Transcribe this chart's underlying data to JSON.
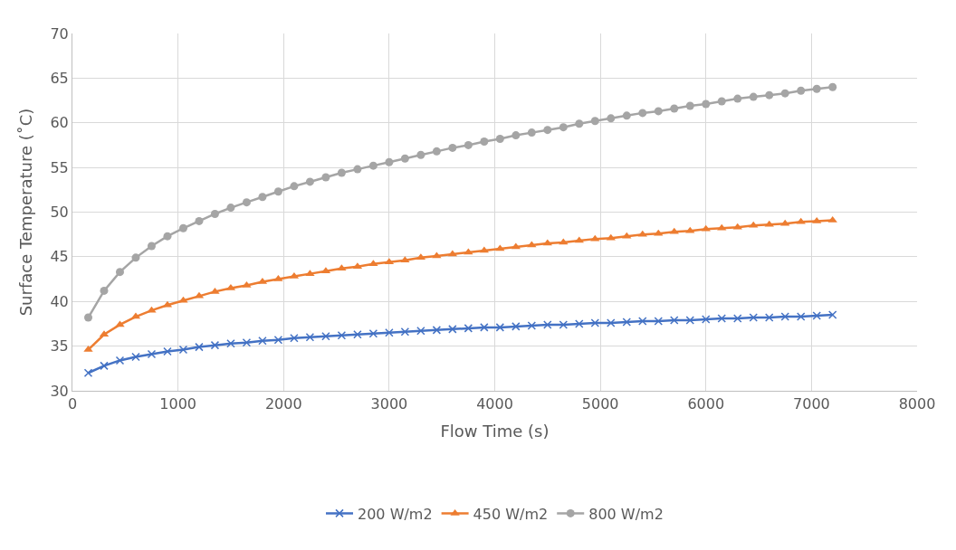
{
  "chart_data": {
    "type": "line",
    "xlabel": "Flow Time (s)",
    "ylabel": "Surface Temperature (˚C)",
    "x": [
      150,
      300,
      450,
      600,
      750,
      900,
      1050,
      1200,
      1350,
      1500,
      1650,
      1800,
      1950,
      2100,
      2250,
      2400,
      2550,
      2700,
      2850,
      3000,
      3150,
      3300,
      3450,
      3600,
      3750,
      3900,
      4050,
      4200,
      4350,
      4500,
      4650,
      4800,
      4950,
      5100,
      5250,
      5400,
      5550,
      5700,
      5850,
      6000,
      6150,
      6300,
      6450,
      6600,
      6750,
      6900,
      7050,
      7200
    ],
    "series": [
      {
        "name": "200 W/m2",
        "color": "#4472c4",
        "marker": "cross",
        "values": [
          32.0,
          32.8,
          33.4,
          33.8,
          34.1,
          34.4,
          34.6,
          34.9,
          35.1,
          35.3,
          35.4,
          35.6,
          35.7,
          35.9,
          36.0,
          36.1,
          36.2,
          36.3,
          36.4,
          36.5,
          36.6,
          36.7,
          36.8,
          36.9,
          37.0,
          37.1,
          37.1,
          37.2,
          37.3,
          37.4,
          37.4,
          37.5,
          37.6,
          37.6,
          37.7,
          37.8,
          37.8,
          37.9,
          37.9,
          38.0,
          38.1,
          38.1,
          38.2,
          38.2,
          38.3,
          38.3,
          38.4,
          38.5
        ]
      },
      {
        "name": "450 W/m2",
        "color": "#ed7d31",
        "marker": "triangle",
        "values": [
          34.6,
          36.3,
          37.4,
          38.3,
          39.0,
          39.6,
          40.1,
          40.6,
          41.1,
          41.5,
          41.8,
          42.2,
          42.5,
          42.8,
          43.1,
          43.4,
          43.7,
          43.9,
          44.2,
          44.4,
          44.6,
          44.9,
          45.1,
          45.3,
          45.5,
          45.7,
          45.9,
          46.1,
          46.3,
          46.5,
          46.6,
          46.8,
          47.0,
          47.1,
          47.3,
          47.5,
          47.6,
          47.8,
          47.9,
          48.1,
          48.2,
          48.3,
          48.5,
          48.6,
          48.7,
          48.9,
          49.0,
          49.1
        ]
      },
      {
        "name": "800 W/m2",
        "color": "#a5a5a5",
        "marker": "circle",
        "values": [
          38.2,
          41.2,
          43.3,
          44.9,
          46.2,
          47.3,
          48.2,
          49.0,
          49.8,
          50.5,
          51.1,
          51.7,
          52.3,
          52.9,
          53.4,
          53.9,
          54.4,
          54.8,
          55.2,
          55.6,
          56.0,
          56.4,
          56.8,
          57.2,
          57.5,
          57.9,
          58.2,
          58.6,
          58.9,
          59.2,
          59.5,
          59.9,
          60.2,
          60.5,
          60.8,
          61.1,
          61.3,
          61.6,
          61.9,
          62.1,
          62.4,
          62.7,
          62.9,
          63.1,
          63.3,
          63.6,
          63.8,
          64.0
        ]
      }
    ],
    "xlim": [
      0,
      8000
    ],
    "xticks": [
      0,
      1000,
      2000,
      3000,
      4000,
      5000,
      6000,
      7000,
      8000
    ],
    "ylim": [
      30,
      70
    ],
    "yticks": [
      30,
      35,
      40,
      45,
      50,
      55,
      60,
      65,
      70
    ],
    "grid": true,
    "legend": "bottom",
    "line_style": "solid"
  }
}
